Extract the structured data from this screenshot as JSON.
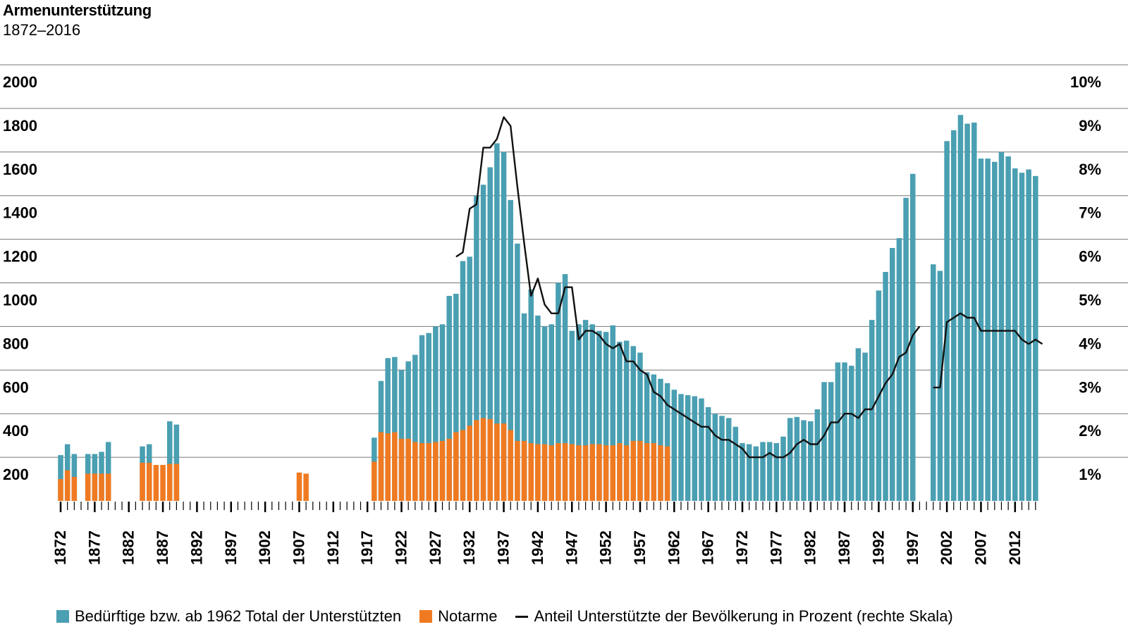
{
  "title": "Armenunterstützung",
  "subtitle": "1872–2016",
  "colors": {
    "beduerftige": "#4a9fb2",
    "notarme": "#f07a21",
    "line": "#111111",
    "grid": "#555555"
  },
  "chart_data": {
    "type": "bar",
    "title": "Armenunterstützung",
    "subtitle": "1872–2016",
    "x_range": [
      1872,
      2016
    ],
    "left_axis": {
      "ylim": [
        0,
        2000
      ],
      "ticks": [
        "2000",
        "1800",
        "1600",
        "1400",
        "1200",
        "1000",
        "800",
        "600",
        "400",
        "200"
      ]
    },
    "right_axis": {
      "ylim": [
        0,
        10
      ],
      "ticks": [
        "10%",
        "9%",
        "8%",
        "7%",
        "6%",
        "5%",
        "4%",
        "3%",
        "2%",
        "1%"
      ]
    },
    "x_tick_labels": [
      "1872",
      "1877",
      "1882",
      "1887",
      "1892",
      "1897",
      "1902",
      "1907",
      "1912",
      "1917",
      "1922",
      "1927",
      "1932",
      "1937",
      "1942",
      "1947",
      "1952",
      "1957",
      "1962",
      "1967",
      "1972",
      "1977",
      "1982",
      "1987",
      "1992",
      "1997",
      "2002",
      "2007",
      "2012"
    ],
    "grid": true,
    "legend_position": "bottom",
    "series": [
      {
        "name": "Bedürftige bzw. ab 1962 Total der Unterstützten",
        "type": "bar",
        "axis": "left",
        "data": [
          [
            1872,
            210
          ],
          [
            1873,
            260
          ],
          [
            1874,
            215
          ],
          [
            1876,
            215
          ],
          [
            1877,
            215
          ],
          [
            1878,
            225
          ],
          [
            1879,
            270
          ],
          [
            1884,
            250
          ],
          [
            1885,
            260
          ],
          [
            1888,
            365
          ],
          [
            1889,
            350
          ],
          [
            1918,
            290
          ],
          [
            1919,
            550
          ],
          [
            1920,
            655
          ],
          [
            1921,
            660
          ],
          [
            1922,
            600
          ],
          [
            1923,
            640
          ],
          [
            1924,
            670
          ],
          [
            1925,
            760
          ],
          [
            1926,
            770
          ],
          [
            1927,
            800
          ],
          [
            1928,
            810
          ],
          [
            1929,
            940
          ],
          [
            1930,
            950
          ],
          [
            1931,
            1100
          ],
          [
            1932,
            1120
          ],
          [
            1933,
            1400
          ],
          [
            1934,
            1450
          ],
          [
            1935,
            1530
          ],
          [
            1936,
            1640
          ],
          [
            1937,
            1600
          ],
          [
            1938,
            1380
          ],
          [
            1939,
            1180
          ],
          [
            1940,
            860
          ],
          [
            1941,
            970
          ],
          [
            1942,
            850
          ],
          [
            1943,
            800
          ],
          [
            1944,
            810
          ],
          [
            1945,
            1000
          ],
          [
            1946,
            1040
          ],
          [
            1947,
            780
          ],
          [
            1948,
            810
          ],
          [
            1949,
            830
          ],
          [
            1950,
            810
          ],
          [
            1951,
            780
          ],
          [
            1952,
            775
          ],
          [
            1953,
            805
          ],
          [
            1954,
            730
          ],
          [
            1955,
            735
          ],
          [
            1956,
            710
          ],
          [
            1957,
            680
          ],
          [
            1958,
            590
          ],
          [
            1959,
            580
          ],
          [
            1960,
            560
          ],
          [
            1961,
            540
          ],
          [
            1962,
            510
          ],
          [
            1963,
            490
          ],
          [
            1964,
            485
          ],
          [
            1965,
            480
          ],
          [
            1966,
            470
          ],
          [
            1967,
            430
          ],
          [
            1968,
            400
          ],
          [
            1969,
            390
          ],
          [
            1970,
            380
          ],
          [
            1971,
            340
          ],
          [
            1972,
            265
          ],
          [
            1973,
            260
          ],
          [
            1974,
            250
          ],
          [
            1975,
            270
          ],
          [
            1976,
            270
          ],
          [
            1977,
            265
          ],
          [
            1978,
            295
          ],
          [
            1979,
            380
          ],
          [
            1980,
            385
          ],
          [
            1981,
            370
          ],
          [
            1982,
            365
          ],
          [
            1983,
            420
          ],
          [
            1984,
            545
          ],
          [
            1985,
            545
          ],
          [
            1986,
            635
          ],
          [
            1987,
            635
          ],
          [
            1988,
            620
          ],
          [
            1989,
            700
          ],
          [
            1990,
            680
          ],
          [
            1991,
            830
          ],
          [
            1992,
            965
          ],
          [
            1993,
            1050
          ],
          [
            1994,
            1160
          ],
          [
            1995,
            1205
          ],
          [
            1996,
            1390
          ],
          [
            1997,
            1500
          ],
          [
            2000,
            1085
          ],
          [
            2001,
            1055
          ],
          [
            2002,
            1650
          ],
          [
            2003,
            1700
          ],
          [
            2004,
            1770
          ],
          [
            2005,
            1730
          ],
          [
            2006,
            1735
          ],
          [
            2007,
            1570
          ],
          [
            2008,
            1570
          ],
          [
            2009,
            1555
          ],
          [
            2010,
            1600
          ],
          [
            2011,
            1580
          ],
          [
            2012,
            1525
          ],
          [
            2013,
            1505
          ],
          [
            2014,
            1520
          ],
          [
            2015,
            1490
          ]
        ]
      },
      {
        "name": "Notarme",
        "type": "bar",
        "axis": "left",
        "data": [
          [
            1872,
            100
          ],
          [
            1873,
            140
          ],
          [
            1874,
            110
          ],
          [
            1876,
            125
          ],
          [
            1877,
            125
          ],
          [
            1878,
            125
          ],
          [
            1879,
            125
          ],
          [
            1884,
            175
          ],
          [
            1885,
            175
          ],
          [
            1886,
            165
          ],
          [
            1887,
            165
          ],
          [
            1888,
            170
          ],
          [
            1889,
            170
          ],
          [
            1907,
            130
          ],
          [
            1908,
            125
          ],
          [
            1918,
            180
          ],
          [
            1919,
            315
          ],
          [
            1920,
            310
          ],
          [
            1921,
            315
          ],
          [
            1922,
            285
          ],
          [
            1923,
            285
          ],
          [
            1924,
            270
          ],
          [
            1925,
            265
          ],
          [
            1926,
            265
          ],
          [
            1927,
            270
          ],
          [
            1928,
            275
          ],
          [
            1929,
            285
          ],
          [
            1930,
            315
          ],
          [
            1931,
            325
          ],
          [
            1932,
            345
          ],
          [
            1933,
            370
          ],
          [
            1934,
            380
          ],
          [
            1935,
            375
          ],
          [
            1936,
            355
          ],
          [
            1937,
            355
          ],
          [
            1938,
            325
          ],
          [
            1939,
            275
          ],
          [
            1940,
            275
          ],
          [
            1941,
            265
          ],
          [
            1942,
            260
          ],
          [
            1943,
            260
          ],
          [
            1944,
            255
          ],
          [
            1945,
            265
          ],
          [
            1946,
            265
          ],
          [
            1947,
            260
          ],
          [
            1948,
            255
          ],
          [
            1949,
            255
          ],
          [
            1950,
            260
          ],
          [
            1951,
            260
          ],
          [
            1952,
            255
          ],
          [
            1953,
            255
          ],
          [
            1954,
            265
          ],
          [
            1955,
            255
          ],
          [
            1956,
            275
          ],
          [
            1957,
            275
          ],
          [
            1958,
            265
          ],
          [
            1959,
            265
          ],
          [
            1960,
            255
          ],
          [
            1961,
            250
          ]
        ]
      },
      {
        "name": "Anteil Unterstützte der Bevölkerung in Prozent (rechte Skala)",
        "type": "line",
        "axis": "right",
        "data": [
          [
            [
              1930,
              5.6
            ],
            [
              1931,
              5.7
            ],
            [
              1932,
              6.7
            ],
            [
              1933,
              6.8
            ],
            [
              1934,
              8.1
            ],
            [
              1935,
              8.1
            ],
            [
              1936,
              8.3
            ],
            [
              1937,
              8.8
            ],
            [
              1938,
              8.6
            ],
            [
              1939,
              7.2
            ],
            [
              1940,
              5.9
            ],
            [
              1941,
              4.7
            ],
            [
              1942,
              5.1
            ],
            [
              1943,
              4.5
            ],
            [
              1944,
              4.3
            ],
            [
              1945,
              4.3
            ],
            [
              1946,
              4.9
            ],
            [
              1947,
              4.9
            ],
            [
              1948,
              3.7
            ],
            [
              1949,
              3.9
            ],
            [
              1950,
              3.9
            ],
            [
              1951,
              3.8
            ],
            [
              1952,
              3.6
            ],
            [
              1953,
              3.5
            ],
            [
              1954,
              3.6
            ],
            [
              1955,
              3.2
            ],
            [
              1956,
              3.2
            ],
            [
              1957,
              3.0
            ],
            [
              1958,
              2.9
            ],
            [
              1959,
              2.5
            ],
            [
              1960,
              2.4
            ],
            [
              1961,
              2.2
            ],
            [
              1962,
              2.1
            ],
            [
              1963,
              2.0
            ],
            [
              1964,
              1.9
            ],
            [
              1965,
              1.8
            ],
            [
              1966,
              1.7
            ],
            [
              1967,
              1.7
            ],
            [
              1968,
              1.5
            ],
            [
              1969,
              1.4
            ],
            [
              1970,
              1.4
            ],
            [
              1971,
              1.3
            ],
            [
              1972,
              1.2
            ],
            [
              1973,
              1.0
            ],
            [
              1974,
              1.0
            ],
            [
              1975,
              1.0
            ],
            [
              1976,
              1.1
            ],
            [
              1977,
              1.0
            ],
            [
              1978,
              1.0
            ],
            [
              1979,
              1.1
            ],
            [
              1980,
              1.3
            ],
            [
              1981,
              1.4
            ],
            [
              1982,
              1.3
            ],
            [
              1983,
              1.3
            ],
            [
              1984,
              1.5
            ],
            [
              1985,
              1.8
            ],
            [
              1986,
              1.8
            ],
            [
              1987,
              2.0
            ],
            [
              1988,
              2.0
            ],
            [
              1989,
              1.9
            ],
            [
              1990,
              2.1
            ],
            [
              1991,
              2.1
            ],
            [
              1992,
              2.4
            ],
            [
              1993,
              2.7
            ],
            [
              1994,
              2.9
            ],
            [
              1995,
              3.3
            ],
            [
              1996,
              3.4
            ],
            [
              1997,
              3.8
            ],
            [
              1998,
              4.0
            ]
          ],
          [
            [
              2000,
              2.6
            ],
            [
              2001,
              2.6
            ],
            [
              2002,
              4.1
            ],
            [
              2003,
              4.2
            ],
            [
              2004,
              4.3
            ],
            [
              2005,
              4.2
            ],
            [
              2006,
              4.2
            ],
            [
              2007,
              3.9
            ],
            [
              2008,
              3.9
            ],
            [
              2009,
              3.9
            ],
            [
              2010,
              3.9
            ],
            [
              2011,
              3.9
            ],
            [
              2012,
              3.9
            ],
            [
              2013,
              3.7
            ],
            [
              2014,
              3.6
            ],
            [
              2015,
              3.7
            ],
            [
              2016,
              3.6
            ]
          ]
        ]
      }
    ]
  },
  "legend": [
    {
      "label": "Bedürftige bzw. ab 1962 Total der Unterstützten",
      "kind": "bar"
    },
    {
      "label": "Notarme",
      "kind": "bar"
    },
    {
      "label": "Anteil Unterstützte der Bevölkerung in Prozent (rechte Skala)",
      "kind": "line"
    }
  ]
}
